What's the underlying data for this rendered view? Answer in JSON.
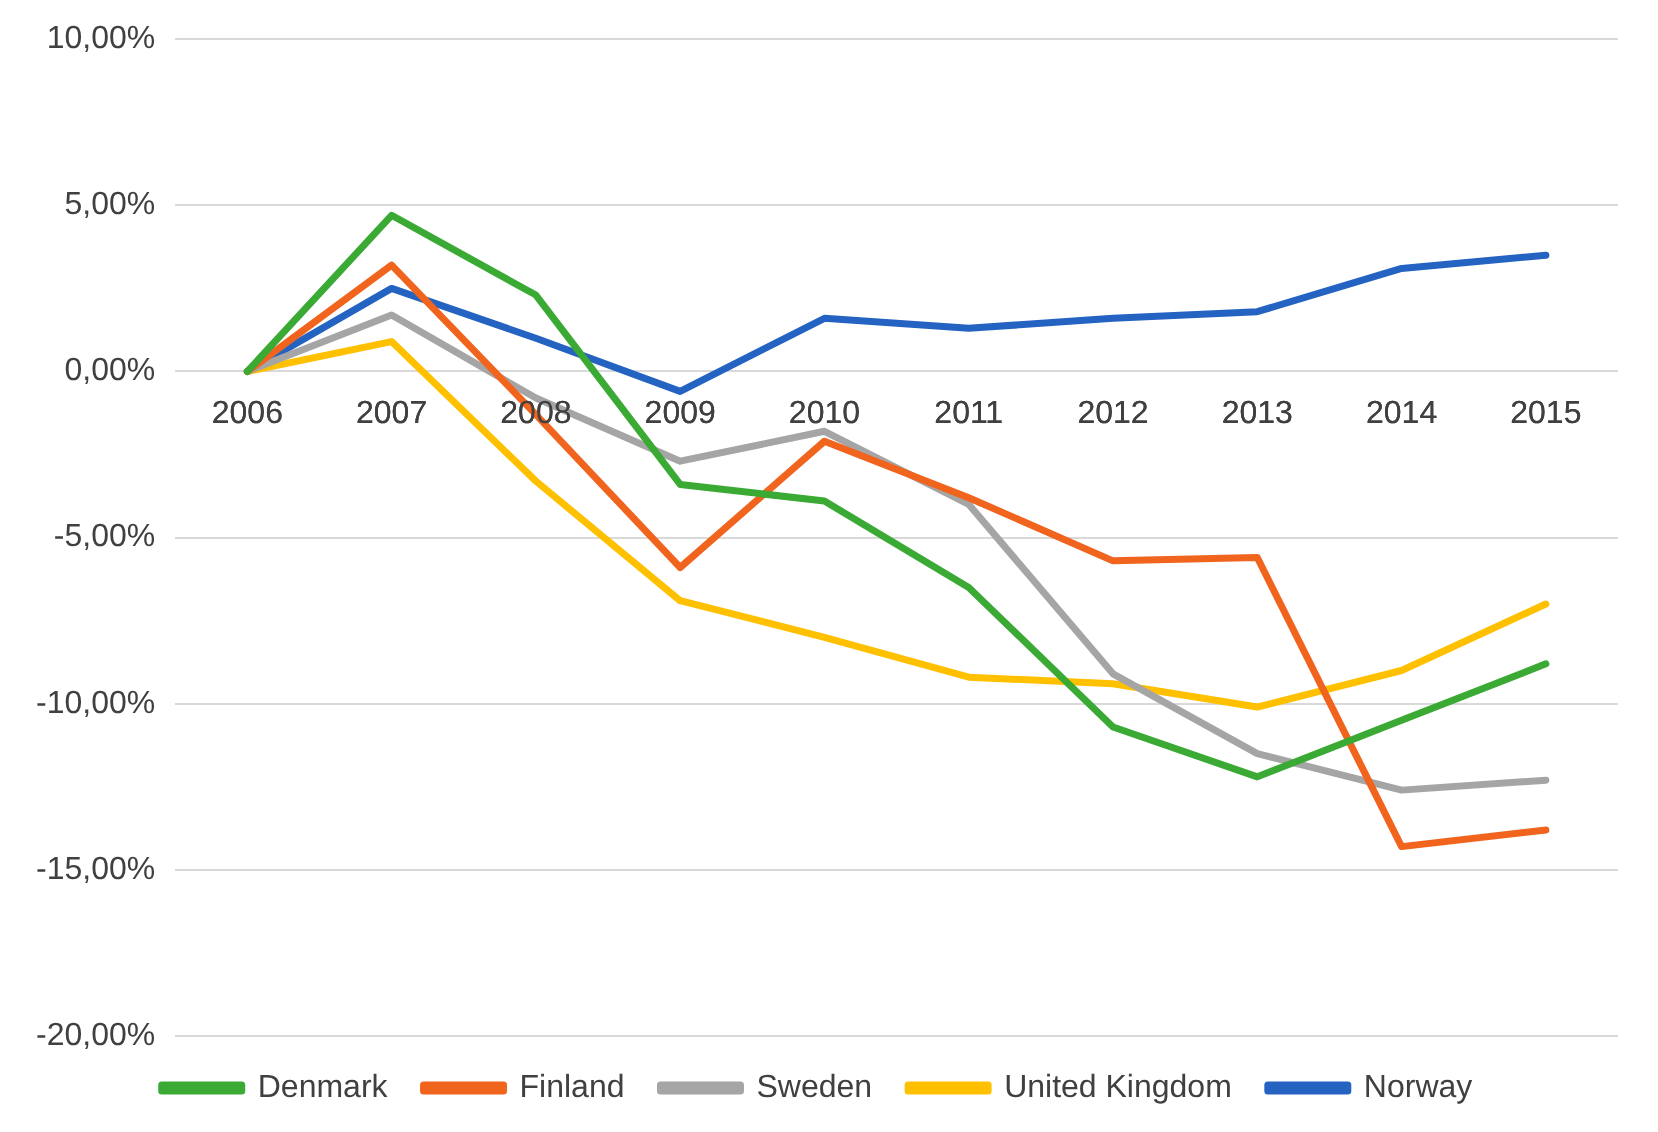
{
  "chart_data": {
    "type": "line",
    "categories": [
      "2006",
      "2007",
      "2008",
      "2009",
      "2010",
      "2011",
      "2012",
      "2013",
      "2014",
      "2015"
    ],
    "series": [
      {
        "name": "Denmark",
        "color": "#3aaa35",
        "values": [
          0,
          4.7,
          2.3,
          -3.4,
          -3.9,
          -6.5,
          -10.7,
          -12.2,
          -10.5,
          -8.8
        ]
      },
      {
        "name": "Finland",
        "color": "#f0641e",
        "values": [
          0,
          3.2,
          -1.3,
          -5.9,
          -2.1,
          -3.8,
          -5.7,
          -5.6,
          -14.3,
          -13.8
        ]
      },
      {
        "name": "Sweden",
        "color": "#a5a5a5",
        "values": [
          0,
          1.7,
          -0.8,
          -2.7,
          -1.8,
          -4.0,
          -9.1,
          -11.5,
          -12.6,
          -12.3
        ]
      },
      {
        "name": "United Kingdom",
        "color": "#ffc000",
        "values": [
          0,
          0.9,
          -3.3,
          -6.9,
          -8.0,
          -9.2,
          -9.4,
          -10.1,
          -9.0,
          -7.0
        ]
      },
      {
        "name": "Norway",
        "color": "#2463c2",
        "values": [
          0,
          2.5,
          1.0,
          -0.6,
          1.6,
          1.3,
          1.6,
          1.8,
          3.1,
          3.5
        ]
      }
    ],
    "ylim": [
      -20,
      10
    ],
    "yticks": [
      {
        "value": -20,
        "label": "-20,00%"
      },
      {
        "value": -15,
        "label": "-15,00%"
      },
      {
        "value": -10,
        "label": "-10,00%"
      },
      {
        "value": -5,
        "label": "-5,00%"
      },
      {
        "value": 0,
        "label": "0,00%"
      },
      {
        "value": 5,
        "label": "5,00%"
      },
      {
        "value": 10,
        "label": "10,00%"
      }
    ],
    "grid": "y",
    "legend": "bottom",
    "marker": "none",
    "line_style": "solid"
  }
}
